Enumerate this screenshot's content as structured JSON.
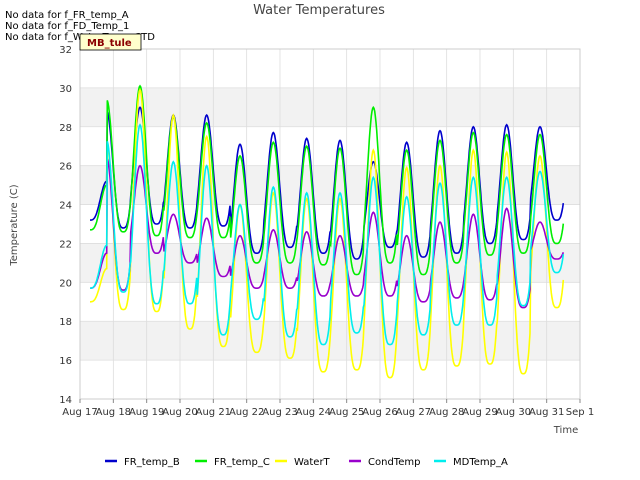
{
  "chart_data": {
    "type": "line",
    "title": "Water Temperatures",
    "xlabel": "Time",
    "ylabel": "Temperature (C)",
    "ylim": [
      14,
      32
    ],
    "xlim": [
      17,
      32
    ],
    "yticks": [
      14,
      16,
      18,
      20,
      22,
      24,
      26,
      28,
      30,
      32
    ],
    "xticks": [
      {
        "x": 17,
        "label": "Aug 17"
      },
      {
        "x": 18,
        "label": "Aug 18"
      },
      {
        "x": 19,
        "label": "Aug 19"
      },
      {
        "x": 20,
        "label": "Aug 20"
      },
      {
        "x": 21,
        "label": "Aug 21"
      },
      {
        "x": 22,
        "label": "Aug 22"
      },
      {
        "x": 23,
        "label": "Aug 23"
      },
      {
        "x": 24,
        "label": "Aug 24"
      },
      {
        "x": 25,
        "label": "Aug 25"
      },
      {
        "x": 26,
        "label": "Aug 26"
      },
      {
        "x": 27,
        "label": "Aug 27"
      },
      {
        "x": 28,
        "label": "Aug 28"
      },
      {
        "x": 29,
        "label": "Aug 29"
      },
      {
        "x": 30,
        "label": "Aug 30"
      },
      {
        "x": 31,
        "label": "Aug 31"
      },
      {
        "x": 32,
        "label": "Sep 1"
      }
    ],
    "grid": true,
    "background_bands": "alternating light gray",
    "legend_position": "bottom",
    "no_data_messages": [
      "No data for f_FR_temp_A",
      "No data for f_FD_Temp_1",
      "No data for f_WaterTemp_CTD"
    ],
    "badge_label": "MB_tule",
    "series": [
      {
        "name": "FR_temp_B",
        "color": "#0000cc",
        "note": "daily min then max per day",
        "daily": [
          {
            "day": 17.3,
            "min": 23.2,
            "max": 25.2
          },
          {
            "day": 18.0,
            "min": 22.8,
            "max": 28.8
          },
          {
            "day": 19.0,
            "min": 23.0,
            "max": 29.0
          },
          {
            "day": 20.0,
            "min": 22.8,
            "max": 28.6
          },
          {
            "day": 21.0,
            "min": 22.9,
            "max": 28.6
          },
          {
            "day": 22.0,
            "min": 21.5,
            "max": 27.1
          },
          {
            "day": 23.0,
            "min": 21.8,
            "max": 27.7
          },
          {
            "day": 24.0,
            "min": 21.5,
            "max": 27.4
          },
          {
            "day": 25.0,
            "min": 21.2,
            "max": 27.3
          },
          {
            "day": 26.0,
            "min": 21.8,
            "max": 26.2
          },
          {
            "day": 27.0,
            "min": 21.3,
            "max": 27.2
          },
          {
            "day": 28.0,
            "min": 21.5,
            "max": 27.8
          },
          {
            "day": 29.0,
            "min": 22.0,
            "max": 28.0
          },
          {
            "day": 30.0,
            "min": 22.2,
            "max": 28.1
          },
          {
            "day": 31.0,
            "min": 23.2,
            "max": 28.0
          }
        ]
      },
      {
        "name": "FR_temp_C",
        "color": "#00ee00",
        "daily": [
          {
            "day": 17.3,
            "min": 22.7,
            "max": 25.0
          },
          {
            "day": 18.0,
            "min": 22.6,
            "max": 29.4
          },
          {
            "day": 19.0,
            "min": 22.4,
            "max": 30.1
          },
          {
            "day": 20.0,
            "min": 22.3,
            "max": 28.5
          },
          {
            "day": 21.0,
            "min": 22.3,
            "max": 28.2
          },
          {
            "day": 22.0,
            "min": 21.0,
            "max": 26.5
          },
          {
            "day": 23.0,
            "min": 21.0,
            "max": 27.2
          },
          {
            "day": 24.0,
            "min": 20.9,
            "max": 27.0
          },
          {
            "day": 25.0,
            "min": 20.4,
            "max": 26.9
          },
          {
            "day": 26.0,
            "min": 21.0,
            "max": 29.0
          },
          {
            "day": 27.0,
            "min": 20.4,
            "max": 26.8
          },
          {
            "day": 28.0,
            "min": 21.0,
            "max": 27.3
          },
          {
            "day": 29.0,
            "min": 21.4,
            "max": 27.7
          },
          {
            "day": 30.0,
            "min": 21.5,
            "max": 27.6
          },
          {
            "day": 31.0,
            "min": 22.0,
            "max": 27.6
          }
        ]
      },
      {
        "name": "WaterT",
        "color": "#ffff00",
        "daily": [
          {
            "day": 17.3,
            "min": 19.0,
            "max": 20.7
          },
          {
            "day": 18.0,
            "min": 18.6,
            "max": 27.2
          },
          {
            "day": 19.0,
            "min": 18.5,
            "max": 29.9
          },
          {
            "day": 20.0,
            "min": 17.6,
            "max": 28.6
          },
          {
            "day": 21.0,
            "min": 16.7,
            "max": 27.5
          },
          {
            "day": 22.0,
            "min": 16.4,
            "max": 24.0
          },
          {
            "day": 23.0,
            "min": 16.1,
            "max": 24.6
          },
          {
            "day": 24.0,
            "min": 15.4,
            "max": 24.3
          },
          {
            "day": 25.0,
            "min": 15.5,
            "max": 24.3
          },
          {
            "day": 26.0,
            "min": 15.1,
            "max": 26.8
          },
          {
            "day": 27.0,
            "min": 15.5,
            "max": 25.9
          },
          {
            "day": 28.0,
            "min": 15.7,
            "max": 26.0
          },
          {
            "day": 29.0,
            "min": 15.8,
            "max": 26.8
          },
          {
            "day": 30.0,
            "min": 15.3,
            "max": 26.7
          },
          {
            "day": 31.0,
            "min": 18.7,
            "max": 26.5
          }
        ]
      },
      {
        "name": "CondTemp",
        "color": "#9900cc",
        "daily": [
          {
            "day": 17.3,
            "min": 19.7,
            "max": 21.5
          },
          {
            "day": 18.0,
            "min": 19.6,
            "max": 26.4
          },
          {
            "day": 19.0,
            "min": 21.5,
            "max": 26.0
          },
          {
            "day": 20.0,
            "min": 21.0,
            "max": 23.5
          },
          {
            "day": 21.0,
            "min": 20.3,
            "max": 23.3
          },
          {
            "day": 22.0,
            "min": 19.7,
            "max": 22.4
          },
          {
            "day": 23.0,
            "min": 19.7,
            "max": 22.7
          },
          {
            "day": 24.0,
            "min": 19.3,
            "max": 22.6
          },
          {
            "day": 25.0,
            "min": 19.3,
            "max": 22.4
          },
          {
            "day": 26.0,
            "min": 19.3,
            "max": 23.6
          },
          {
            "day": 27.0,
            "min": 19.0,
            "max": 22.4
          },
          {
            "day": 28.0,
            "min": 19.2,
            "max": 23.1
          },
          {
            "day": 29.0,
            "min": 19.1,
            "max": 23.5
          },
          {
            "day": 30.0,
            "min": 18.7,
            "max": 23.8
          },
          {
            "day": 31.0,
            "min": 21.2,
            "max": 23.1
          }
        ]
      },
      {
        "name": "MDTemp_A",
        "color": "#00eeee",
        "daily": [
          {
            "day": 17.3,
            "min": 19.7,
            "max": 21.9
          },
          {
            "day": 18.0,
            "min": 19.5,
            "max": 27.3
          },
          {
            "day": 19.0,
            "min": 18.9,
            "max": 28.1
          },
          {
            "day": 20.0,
            "min": 18.9,
            "max": 26.2
          },
          {
            "day": 21.0,
            "min": 17.3,
            "max": 26.0
          },
          {
            "day": 22.0,
            "min": 18.1,
            "max": 24.0
          },
          {
            "day": 23.0,
            "min": 17.2,
            "max": 24.9
          },
          {
            "day": 24.0,
            "min": 16.8,
            "max": 24.6
          },
          {
            "day": 25.0,
            "min": 17.4,
            "max": 24.6
          },
          {
            "day": 26.0,
            "min": 16.8,
            "max": 25.4
          },
          {
            "day": 27.0,
            "min": 17.3,
            "max": 24.4
          },
          {
            "day": 28.0,
            "min": 17.8,
            "max": 25.1
          },
          {
            "day": 29.0,
            "min": 17.8,
            "max": 25.4
          },
          {
            "day": 30.0,
            "min": 18.8,
            "max": 25.4
          },
          {
            "day": 31.0,
            "min": 20.5,
            "max": 25.7
          }
        ]
      }
    ]
  }
}
